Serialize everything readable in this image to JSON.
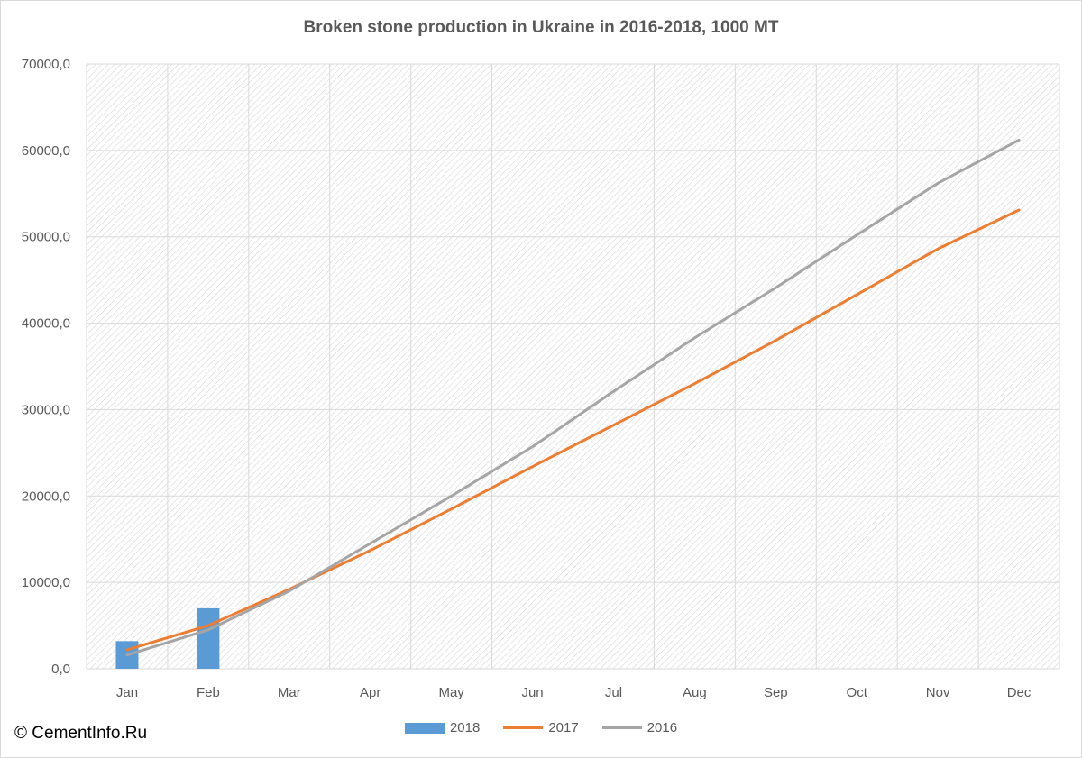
{
  "chart_data": {
    "type": "bar",
    "title": "Broken stone production in Ukraine in 2016-2018, 1000 MT",
    "xlabel": "",
    "ylabel": "",
    "categories": [
      "Jan",
      "Feb",
      "Mar",
      "Apr",
      "May",
      "Jun",
      "Jul",
      "Aug",
      "Sep",
      "Oct",
      "Nov",
      "Dec"
    ],
    "ylim": [
      0,
      70000
    ],
    "yticks": [
      "0,0",
      "10000,0",
      "20000,0",
      "30000,0",
      "40000,0",
      "50000,0",
      "60000,0",
      "70000,0"
    ],
    "grid": true,
    "legend_position": "bottom",
    "series": [
      {
        "name": "2018",
        "type": "bar",
        "color": "#5b9bd5",
        "values": [
          3200,
          7000,
          null,
          null,
          null,
          null,
          null,
          null,
          null,
          null,
          null,
          null
        ]
      },
      {
        "name": "2017",
        "type": "line",
        "color": "#ed7d31",
        "values": [
          2200,
          5000,
          9200,
          13700,
          18500,
          23400,
          28200,
          33000,
          38000,
          43300,
          48600,
          53100
        ]
      },
      {
        "name": "2016",
        "type": "line",
        "color": "#a5a5a5",
        "values": [
          1600,
          4500,
          9000,
          14500,
          20000,
          25700,
          32100,
          38300,
          44100,
          50200,
          56200,
          61200
        ]
      }
    ]
  },
  "copyright": "© CementInfo.Ru"
}
